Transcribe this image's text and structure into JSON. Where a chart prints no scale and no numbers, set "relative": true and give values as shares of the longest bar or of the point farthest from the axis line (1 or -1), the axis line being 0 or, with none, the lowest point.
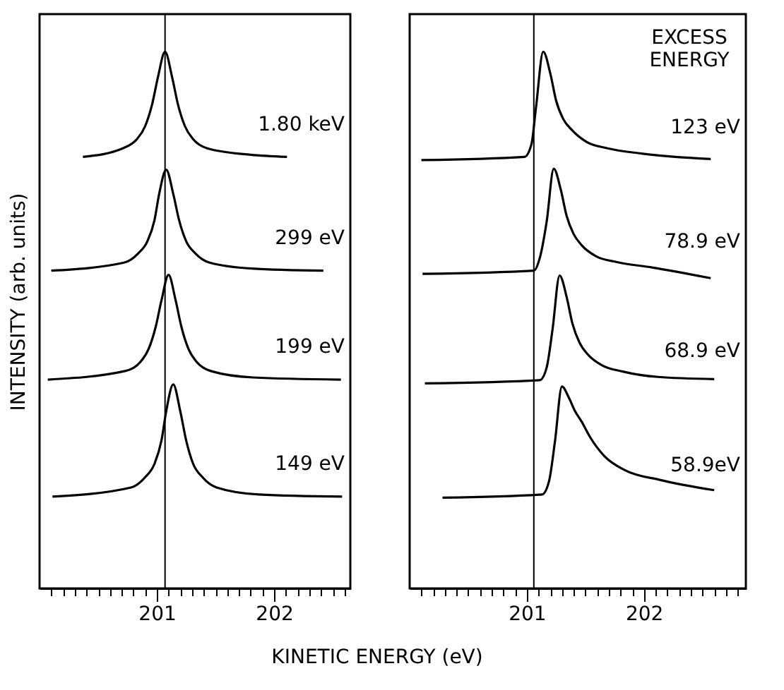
{
  "chart_data": [
    {
      "type": "line",
      "relative": true,
      "ylabel": "INTENSITY (arb. units)",
      "xlabel": "KINETIC ENERGY (eV)",
      "xlim": [
        200.0,
        202.65
      ],
      "xticks": [
        {
          "value": 200.1,
          "label": null
        },
        {
          "value": 200.2,
          "label": null
        },
        {
          "value": 200.3,
          "label": null
        },
        {
          "value": 200.4,
          "label": null
        },
        {
          "value": 200.5,
          "label": null
        },
        {
          "value": 200.6,
          "label": null
        },
        {
          "value": 200.7,
          "label": null
        },
        {
          "value": 200.8,
          "label": null
        },
        {
          "value": 200.9,
          "label": null
        },
        201,
        {
          "value": 201.1,
          "label": null
        },
        {
          "value": 201.2,
          "label": null
        },
        {
          "value": 201.3,
          "label": null
        },
        {
          "value": 201.4,
          "label": null
        },
        {
          "value": 201.5,
          "label": null
        },
        {
          "value": 201.6,
          "label": null
        },
        {
          "value": 201.7,
          "label": null
        },
        {
          "value": 201.8,
          "label": null
        },
        {
          "value": 201.9,
          "label": null
        },
        202,
        {
          "value": 202.1,
          "label": null
        },
        {
          "value": 202.2,
          "label": null
        },
        {
          "value": 202.3,
          "label": null
        },
        {
          "value": 202.4,
          "label": null
        },
        {
          "value": 202.5,
          "label": null
        },
        {
          "value": 202.6,
          "label": null
        }
      ],
      "grid": false,
      "legend": false,
      "marker": "none",
      "line_style": "solid",
      "ref_lines": [
        {
          "axis": "x",
          "value": 201.07,
          "color": "#000000"
        }
      ],
      "series": [
        {
          "name": "1.80 keV",
          "color": "#000000",
          "x": [
            200.37,
            200.71,
            200.83,
            200.9,
            200.96,
            201.01,
            201.07,
            201.13,
            201.18,
            201.24,
            201.31,
            201.43,
            201.8,
            202.11
          ],
          "values": [
            0.804,
            0.82,
            0.837,
            0.861,
            0.902,
            0.953,
            1.0,
            0.953,
            0.902,
            0.861,
            0.837,
            0.82,
            0.808,
            0.804
          ]
        },
        {
          "name": "299 eV",
          "color": "#000000",
          "x": [
            200.1,
            200.72,
            200.84,
            200.92,
            200.98,
            201.02,
            201.08,
            201.14,
            201.19,
            201.25,
            201.33,
            201.45,
            201.81,
            202.42
          ],
          "values": [
            0.592,
            0.607,
            0.624,
            0.647,
            0.686,
            0.735,
            0.78,
            0.735,
            0.686,
            0.647,
            0.624,
            0.607,
            0.596,
            0.592
          ]
        },
        {
          "name": "199 eV",
          "color": "#000000",
          "x": [
            200.07,
            200.73,
            200.86,
            200.93,
            200.99,
            201.04,
            201.1,
            201.16,
            201.21,
            201.27,
            201.34,
            201.46,
            201.82,
            202.57
          ],
          "values": [
            0.389,
            0.405,
            0.422,
            0.446,
            0.487,
            0.537,
            0.584,
            0.537,
            0.487,
            0.446,
            0.422,
            0.405,
            0.393,
            0.389
          ]
        },
        {
          "name": "149 eV",
          "color": "#000000",
          "x": [
            200.11,
            200.78,
            200.9,
            200.98,
            201.04,
            201.08,
            201.14,
            201.2,
            201.25,
            201.31,
            201.39,
            201.51,
            201.87,
            202.58
          ],
          "values": [
            0.171,
            0.188,
            0.207,
            0.232,
            0.276,
            0.33,
            0.38,
            0.33,
            0.276,
            0.232,
            0.207,
            0.188,
            0.175,
            0.171
          ]
        }
      ]
    },
    {
      "type": "line",
      "relative": true,
      "xlim": [
        200.0,
        202.87
      ],
      "xticks": [
        {
          "value": 200.1,
          "label": null
        },
        {
          "value": 200.2,
          "label": null
        },
        {
          "value": 200.3,
          "label": null
        },
        {
          "value": 200.4,
          "label": null
        },
        {
          "value": 200.5,
          "label": null
        },
        {
          "value": 200.6,
          "label": null
        },
        {
          "value": 200.7,
          "label": null
        },
        {
          "value": 200.8,
          "label": null
        },
        {
          "value": 200.9,
          "label": null
        },
        201,
        {
          "value": 201.1,
          "label": null
        },
        {
          "value": 201.2,
          "label": null
        },
        {
          "value": 201.3,
          "label": null
        },
        {
          "value": 201.4,
          "label": null
        },
        {
          "value": 201.5,
          "label": null
        },
        {
          "value": 201.6,
          "label": null
        },
        {
          "value": 201.7,
          "label": null
        },
        {
          "value": 201.8,
          "label": null
        },
        {
          "value": 201.9,
          "label": null
        },
        202,
        {
          "value": 202.1,
          "label": null
        },
        {
          "value": 202.2,
          "label": null
        },
        {
          "value": 202.3,
          "label": null
        },
        {
          "value": 202.4,
          "label": null
        },
        {
          "value": 202.5,
          "label": null
        },
        {
          "value": 202.6,
          "label": null
        },
        {
          "value": 202.7,
          "label": null
        },
        {
          "value": 202.8,
          "label": null
        }
      ],
      "grid": false,
      "legend": false,
      "marker": "none",
      "line_style": "solid",
      "annotations": [
        "EXCESS ENERGY"
      ],
      "ref_lines": [
        {
          "axis": "x",
          "value": 201.06,
          "color": "#000000"
        }
      ],
      "series": [
        {
          "name": "123 eV",
          "color": "#000000",
          "x": [
            200.1,
            200.98,
            201.04,
            201.08,
            201.14,
            201.2,
            201.25,
            201.31,
            201.39,
            201.51,
            201.69,
            201.99,
            202.57
          ],
          "values": [
            0.798,
            0.804,
            0.828,
            0.899,
            1.0,
            0.96,
            0.909,
            0.875,
            0.853,
            0.832,
            0.82,
            0.81,
            0.8
          ]
        },
        {
          "name": "78.9 eV",
          "color": "#000000",
          "x": [
            200.11,
            201.06,
            201.11,
            201.17,
            201.23,
            201.29,
            201.34,
            201.4,
            201.47,
            201.59,
            201.77,
            202.07,
            202.57
          ],
          "values": [
            0.586,
            0.592,
            0.615,
            0.684,
            0.782,
            0.743,
            0.694,
            0.66,
            0.639,
            0.619,
            0.608,
            0.598,
            0.578
          ]
        },
        {
          "name": "68.9 eV",
          "color": "#000000",
          "x": [
            200.13,
            201.11,
            201.17,
            201.22,
            201.28,
            201.34,
            201.39,
            201.45,
            201.52,
            201.64,
            201.82,
            202.12,
            202.6
          ],
          "values": [
            0.382,
            0.388,
            0.412,
            0.483,
            0.583,
            0.543,
            0.493,
            0.458,
            0.436,
            0.416,
            0.404,
            0.394,
            0.39
          ]
        },
        {
          "name": "58.9eV",
          "color": "#000000",
          "x": [
            200.28,
            201.13,
            201.19,
            201.24,
            201.3,
            201.36,
            201.41,
            201.47,
            201.54,
            201.66,
            201.84,
            202.14,
            202.6
          ],
          "values": [
            0.169,
            0.175,
            0.2,
            0.273,
            0.376,
            0.355,
            0.331,
            0.31,
            0.282,
            0.247,
            0.22,
            0.202,
            0.183
          ]
        }
      ]
    }
  ]
}
